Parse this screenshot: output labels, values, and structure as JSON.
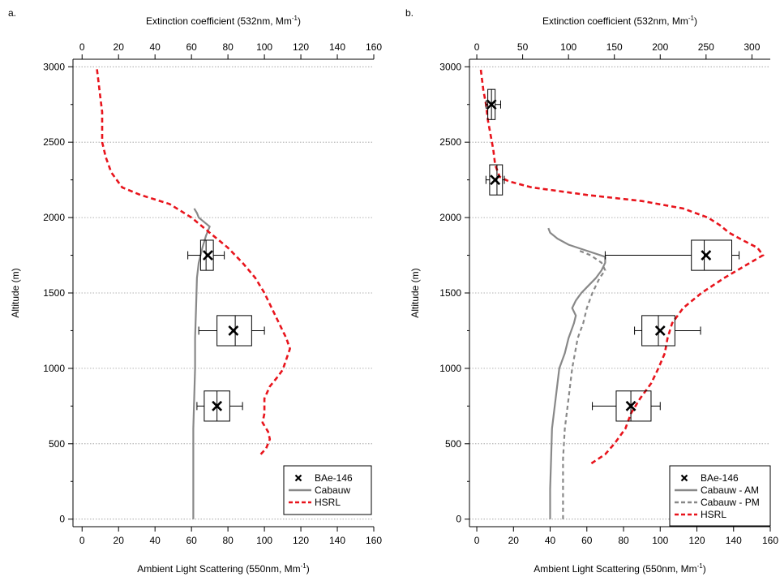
{
  "chart_data": [
    {
      "panel_label": "a.",
      "type": "line",
      "top_axis_title": "Extinction coefficient (532nm, Mm",
      "bottom_axis_title": "Ambient Light Scattering (550nm, Mm",
      "axis_unit_sup": "-1",
      "axis_unit_close": ")",
      "ylabel": "Altitude (m)",
      "xlim": [
        -5,
        160
      ],
      "x2lim": [
        -5,
        160
      ],
      "ylim": [
        -50,
        3050
      ],
      "xticks": [
        0,
        20,
        40,
        60,
        80,
        100,
        120,
        140,
        160
      ],
      "x2ticks": [
        0,
        20,
        40,
        60,
        80,
        100,
        120,
        140,
        160
      ],
      "yticks": [
        0,
        500,
        1000,
        1500,
        2000,
        2500,
        3000
      ],
      "grid": "horizontal dotted",
      "legend_position": "bottom-right",
      "legend": [
        "BAe-146",
        "Cabauw",
        "HSRL"
      ],
      "series": [
        {
          "name": "Cabauw",
          "axis": "bottom",
          "style": "solid",
          "color": "#888888",
          "points": [
            [
              61,
              0
            ],
            [
              61,
              200
            ],
            [
              61,
              400
            ],
            [
              61,
              600
            ],
            [
              61.5,
              800
            ],
            [
              62,
              1000
            ],
            [
              62,
              1200
            ],
            [
              62.5,
              1400
            ],
            [
              63,
              1600
            ],
            [
              64,
              1700
            ],
            [
              66,
              1800
            ],
            [
              68,
              1880
            ],
            [
              70,
              1940
            ],
            [
              67,
              1970
            ],
            [
              64,
              2000
            ],
            [
              63,
              2030
            ],
            [
              61.5,
              2060
            ]
          ]
        },
        {
          "name": "HSRL",
          "axis": "top",
          "style": "dashed",
          "color": "#e8141c",
          "points": [
            [
              98,
              430
            ],
            [
              101,
              470
            ],
            [
              103,
              530
            ],
            [
              102,
              580
            ],
            [
              99,
              640
            ],
            [
              100,
              700
            ],
            [
              100,
              800
            ],
            [
              103,
              880
            ],
            [
              107,
              940
            ],
            [
              110,
              990
            ],
            [
              112,
              1060
            ],
            [
              114,
              1130
            ],
            [
              112,
              1200
            ],
            [
              108,
              1300
            ],
            [
              104,
              1400
            ],
            [
              100,
              1500
            ],
            [
              95,
              1600
            ],
            [
              88,
              1700
            ],
            [
              80,
              1800
            ],
            [
              70,
              1900
            ],
            [
              60,
              2000
            ],
            [
              48,
              2090
            ],
            [
              32,
              2150
            ],
            [
              22,
              2200
            ],
            [
              16,
              2300
            ],
            [
              13,
              2400
            ],
            [
              11,
              2500
            ],
            [
              11,
              2600
            ],
            [
              11,
              2700
            ],
            [
              10,
              2800
            ],
            [
              9,
              2900
            ],
            [
              8,
              3000
            ]
          ]
        }
      ],
      "boxes": [
        {
          "center": 750,
          "whisker_low": 63,
          "q1": 67,
          "median": 74,
          "q3": 81,
          "whisker_high": 88,
          "mean": 74,
          "half_height": 100
        },
        {
          "center": 1250,
          "whisker_low": 64,
          "q1": 74,
          "median": 84,
          "q3": 93,
          "whisker_high": 100,
          "mean": 83,
          "half_height": 100
        },
        {
          "center": 1750,
          "whisker_low": 58,
          "q1": 65,
          "median": 68,
          "q3": 72,
          "whisker_high": 78,
          "mean": 69,
          "half_height": 100
        }
      ]
    },
    {
      "panel_label": "b.",
      "type": "line",
      "top_axis_title": "Extinction coefficient (532nm, Mm",
      "bottom_axis_title": "Ambient Light Scattering (550nm, Mm",
      "axis_unit_sup": "-1",
      "axis_unit_close": ")",
      "ylabel": "Altitude (m)",
      "xlim": [
        -4,
        160
      ],
      "x2lim": [
        -8,
        320
      ],
      "ylim": [
        -50,
        3050
      ],
      "xticks": [
        0,
        20,
        40,
        60,
        80,
        100,
        120,
        140,
        160
      ],
      "x2ticks": [
        0,
        50,
        100,
        150,
        200,
        250,
        300
      ],
      "yticks": [
        0,
        500,
        1000,
        1500,
        2000,
        2500,
        3000
      ],
      "grid": "horizontal dotted",
      "legend_position": "bottom-right",
      "legend": [
        "BAe-146",
        "Cabauw - AM",
        "Cabauw - PM",
        "HSRL"
      ],
      "series": [
        {
          "name": "Cabauw - AM",
          "axis": "bottom",
          "style": "solid",
          "color": "#888888",
          "points": [
            [
              40,
              0
            ],
            [
              40,
              200
            ],
            [
              40.5,
              400
            ],
            [
              41,
              600
            ],
            [
              43,
              800
            ],
            [
              45,
              1000
            ],
            [
              48,
              1100
            ],
            [
              50,
              1200
            ],
            [
              53,
              1300
            ],
            [
              54,
              1350
            ],
            [
              52,
              1400
            ],
            [
              54,
              1450
            ],
            [
              57,
              1500
            ],
            [
              61,
              1550
            ],
            [
              65,
              1600
            ],
            [
              68,
              1650
            ],
            [
              70,
              1700
            ],
            [
              70,
              1740
            ],
            [
              60,
              1780
            ],
            [
              50,
              1820
            ],
            [
              44,
              1860
            ],
            [
              40,
              1900
            ],
            [
              39,
              1930
            ]
          ]
        },
        {
          "name": "Cabauw - PM",
          "axis": "bottom",
          "style": "dashed",
          "color": "#888888",
          "points": [
            [
              47,
              0
            ],
            [
              47,
              200
            ],
            [
              47,
              400
            ],
            [
              48,
              600
            ],
            [
              50,
              800
            ],
            [
              52,
              1000
            ],
            [
              55,
              1200
            ],
            [
              58,
              1300
            ],
            [
              60,
              1400
            ],
            [
              63,
              1500
            ],
            [
              67,
              1600
            ],
            [
              70,
              1650
            ],
            [
              68,
              1700
            ],
            [
              62,
              1750
            ],
            [
              56,
              1780
            ]
          ]
        },
        {
          "name": "HSRL",
          "axis": "top",
          "style": "dashed",
          "color": "#e8141c",
          "points": [
            [
              125,
              370
            ],
            [
              140,
              430
            ],
            [
              150,
              500
            ],
            [
              162,
              600
            ],
            [
              168,
              700
            ],
            [
              178,
              800
            ],
            [
              190,
              900
            ],
            [
              198,
              1000
            ],
            [
              205,
              1100
            ],
            [
              208,
              1200
            ],
            [
              213,
              1300
            ],
            [
              225,
              1400
            ],
            [
              245,
              1500
            ],
            [
              270,
              1600
            ],
            [
              298,
              1700
            ],
            [
              312,
              1750
            ],
            [
              306,
              1800
            ],
            [
              290,
              1850
            ],
            [
              275,
              1900
            ],
            [
              265,
              1950
            ],
            [
              252,
              2000
            ],
            [
              225,
              2060
            ],
            [
              180,
              2110
            ],
            [
              120,
              2150
            ],
            [
              60,
              2200
            ],
            [
              35,
              2240
            ],
            [
              25,
              2270
            ],
            [
              20,
              2350
            ],
            [
              18,
              2450
            ],
            [
              15,
              2550
            ],
            [
              12,
              2650
            ],
            [
              10,
              2750
            ],
            [
              7,
              2850
            ],
            [
              5,
              2950
            ],
            [
              4,
              3000
            ]
          ]
        }
      ],
      "boxes": [
        {
          "center": 750,
          "whisker_low": 63,
          "q1": 76,
          "median": 84,
          "q3": 95,
          "whisker_high": 100,
          "mean": 84,
          "half_height": 100
        },
        {
          "center": 1250,
          "whisker_low": 86,
          "q1": 90,
          "median": 99,
          "q3": 108,
          "whisker_high": 122,
          "mean": 100,
          "half_height": 100
        },
        {
          "center": 1750,
          "whisker_low": 70,
          "q1": 117,
          "median": 124,
          "q3": 139,
          "whisker_high": 143,
          "mean": 125,
          "half_height": 100
        },
        {
          "center": 2250,
          "whisker_low": 5,
          "q1": 7,
          "median": 11,
          "q3": 14,
          "whisker_high": 15,
          "mean": 10,
          "half_height": 100
        },
        {
          "center": 2750,
          "whisker_low": 5,
          "q1": 6,
          "median": 8,
          "q3": 10,
          "whisker_high": 13,
          "mean": 8,
          "half_height": 100
        }
      ]
    }
  ]
}
